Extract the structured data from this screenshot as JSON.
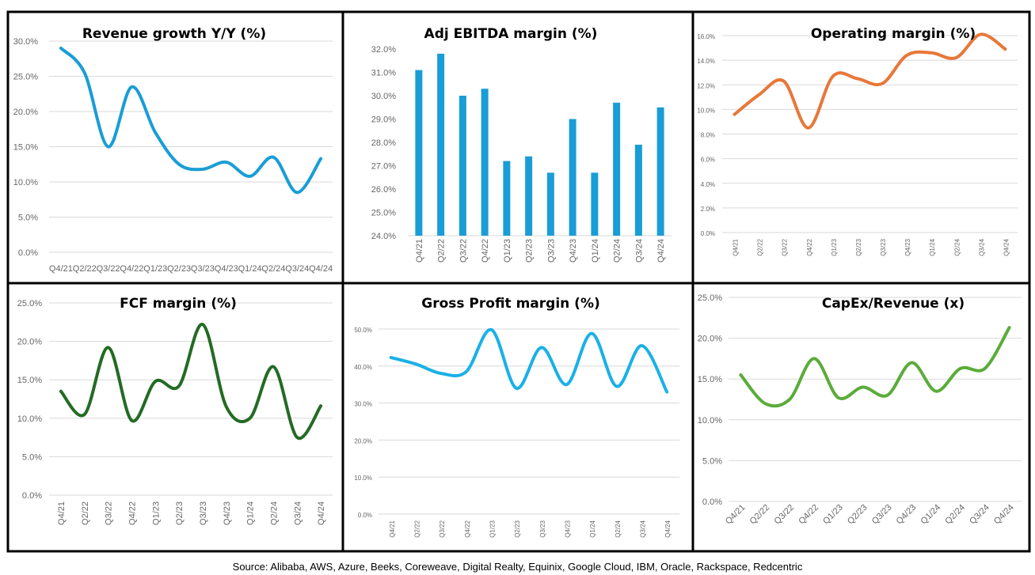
{
  "source": "Source: Alibaba, AWS, Azure, Beeks, Coreweave, Digital Realty, Equinix, Google Cloud, IBM, Oracle, Rackspace, Redcentric",
  "chart_data": [
    {
      "type": "line",
      "title": "Revenue growth Y/Y (%)",
      "color": "#1a9dd6",
      "categories": [
        "Q4/21",
        "Q2/22",
        "Q3/22",
        "Q4/22",
        "Q1/23",
        "Q2/23",
        "Q3/23",
        "Q4/23",
        "Q1/24",
        "Q2/24",
        "Q3/24",
        "Q4/24"
      ],
      "values": [
        29.0,
        25.5,
        15.0,
        23.5,
        17.0,
        12.5,
        11.8,
        12.8,
        10.8,
        13.5,
        8.5,
        13.3
      ],
      "ylim": [
        0,
        30
      ],
      "yticks": [
        "0.0%",
        "5.0%",
        "10.0%",
        "15.0%",
        "20.0%",
        "25.0%",
        "30.0%"
      ],
      "grid": true
    },
    {
      "type": "bar",
      "title": "Adj EBITDA margin (%)",
      "color": "#1a9dd6",
      "categories": [
        "Q4/21",
        "Q2/22",
        "Q3/22",
        "Q4/22",
        "Q1/23",
        "Q2/23",
        "Q3/23",
        "Q4/23",
        "Q1/24",
        "Q2/24",
        "Q3/24",
        "Q4/24"
      ],
      "values": [
        31.1,
        31.8,
        30.0,
        30.3,
        27.2,
        27.4,
        26.7,
        29.0,
        26.7,
        29.7,
        27.9,
        29.5
      ],
      "ylim": [
        24,
        32
      ],
      "yticks": [
        "24.0%",
        "25.0%",
        "26.0%",
        "27.0%",
        "28.0%",
        "29.0%",
        "30.0%",
        "31.0%",
        "32.0%"
      ],
      "grid": false
    },
    {
      "type": "line",
      "title": "Operating margin (%)",
      "color": "#e8773a",
      "categories": [
        "Q4/21",
        "Q2/22",
        "Q3/22",
        "Q4/22",
        "Q1/23",
        "Q2/23",
        "Q3/23",
        "Q4/23",
        "Q1/24",
        "Q2/24",
        "Q3/24",
        "Q4/24"
      ],
      "values": [
        9.6,
        11.2,
        12.3,
        8.5,
        12.7,
        12.5,
        12.1,
        14.4,
        14.6,
        14.2,
        16.1,
        14.9
      ],
      "ylim": [
        0,
        16
      ],
      "yticks": [
        "0.0%",
        "2.0%",
        "4.0%",
        "6.0%",
        "8.0%",
        "10.0%",
        "12.0%",
        "14.0%",
        "16.0%"
      ],
      "grid": true
    },
    {
      "type": "line",
      "title": "FCF margin (%)",
      "color": "#236b24",
      "categories": [
        "Q4/21",
        "Q2/22",
        "Q3/22",
        "Q4/22",
        "Q1/23",
        "Q2/23",
        "Q3/23",
        "Q4/23",
        "Q1/24",
        "Q2/24",
        "Q3/24",
        "Q4/24"
      ],
      "values": [
        13.5,
        10.5,
        19.2,
        9.7,
        14.8,
        14.2,
        22.2,
        11.5,
        10.0,
        16.7,
        7.5,
        11.6
      ],
      "ylim": [
        0,
        25
      ],
      "yticks": [
        "0.0%",
        "5.0%",
        "10.0%",
        "15.0%",
        "20.0%",
        "25.0%"
      ],
      "grid": true
    },
    {
      "type": "line",
      "title": "Gross Profit margin (%)",
      "color": "#1ab0e8",
      "categories": [
        "Q4/21",
        "Q2/22",
        "Q3/22",
        "Q4/22",
        "Q1/23",
        "Q2/23",
        "Q3/23",
        "Q4/23",
        "Q1/24",
        "Q2/24",
        "Q3/24",
        "Q4/24"
      ],
      "values": [
        42.3,
        40.5,
        38.0,
        38.5,
        49.8,
        34.0,
        45.0,
        35.0,
        48.8,
        34.5,
        45.5,
        33.0
      ],
      "ylim": [
        0,
        50
      ],
      "yticks": [
        "0.0%",
        "10.0%",
        "20.0%",
        "30.0%",
        "40.0%",
        "50.0%"
      ],
      "grid": true
    },
    {
      "type": "line",
      "title": "CapEx/Revenue (x)",
      "color": "#5aac3a",
      "categories": [
        "Q4/21",
        "Q2/22",
        "Q3/22",
        "Q4/22",
        "Q1/23",
        "Q2/23",
        "Q3/23",
        "Q4/23",
        "Q1/24",
        "Q2/24",
        "Q3/24",
        "Q4/24"
      ],
      "values": [
        15.5,
        12.0,
        12.5,
        17.5,
        12.7,
        14.0,
        13.0,
        17.0,
        13.5,
        16.3,
        16.3,
        21.3
      ],
      "ylim": [
        0,
        25
      ],
      "yticks": [
        "0.0%",
        "5.0%",
        "10.0%",
        "15.0%",
        "20.0%",
        "25.0%"
      ],
      "grid": true
    }
  ]
}
